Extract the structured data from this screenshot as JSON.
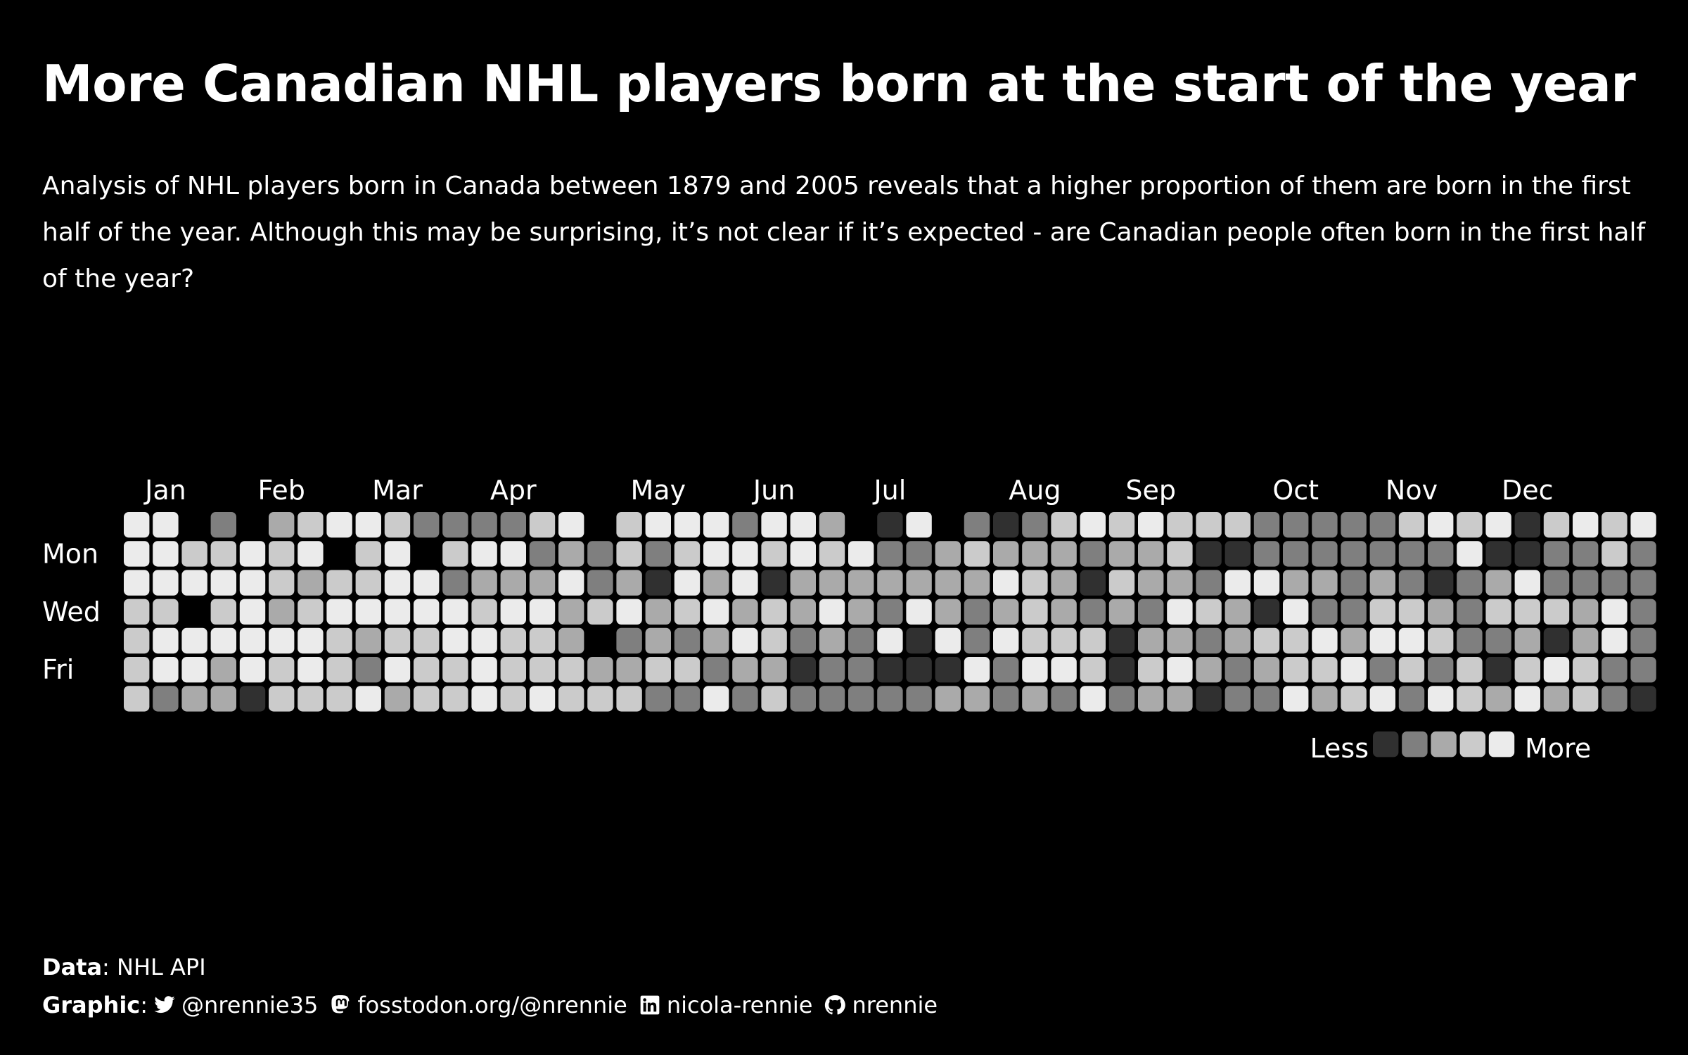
{
  "title": "More Canadian NHL players born at the start of the year",
  "subtitle": "Analysis of NHL players born in Canada between 1879 and 2005 reveals that a higher proportion of them are born in the first half of the year. Although this may be surprising, it’s not clear if it’s expected - are Canadian people often born in the first half of the year?",
  "caption": {
    "data_label": "Data",
    "data_value": ": NHL API",
    "graphic_label": "Graphic",
    "graphic_colon": ":",
    "twitter": "@nrennie35",
    "mastodon": "fosstodon.org/@nrennie",
    "linkedin": "nicola-rennie",
    "github": "nrennie",
    "icons": [
      "twitter-icon",
      "mastodon-icon",
      "linkedin-icon",
      "github-icon"
    ]
  },
  "chart_data": {
    "type": "heatmap",
    "title": "More Canadian NHL players born at the start of the year",
    "months": [
      "Jan",
      "Feb",
      "Mar",
      "Apr",
      "May",
      "Jun",
      "Jul",
      "Aug",
      "Sep",
      "Oct",
      "Nov",
      "Dec"
    ],
    "month_start_week": [
      1,
      5,
      9,
      13,
      18,
      22,
      26,
      31,
      35,
      40,
      44,
      48
    ],
    "day_labels": {
      "Mon": 1,
      "Wed": 3,
      "Fri": 5
    },
    "legend": {
      "low_label": "Less",
      "high_label": "More",
      "placement": "bottom-right"
    },
    "level_colors": [
      "#303030",
      "#7f7f7f",
      "#aaaaaa",
      "#cbcbcb",
      "#ebebeb"
    ],
    "background": "#000000",
    "rows": 7,
    "columns": 53,
    "levels_by_row": [
      "44515234431111345344414425045101343433311111343403434",
      "44334345345344121313443434112322212230011111114001131",
      "44444323344122241204240222222243203221442212101241111",
      "33534234444434423423423242142123212143204113321333241",
      "34444443233443325121243121404143330221233424431120241",
      "34424343143343332233122011000414430342123341313034311",
      "31220333423343433311413111112212141220114234143242310"
    ]
  }
}
